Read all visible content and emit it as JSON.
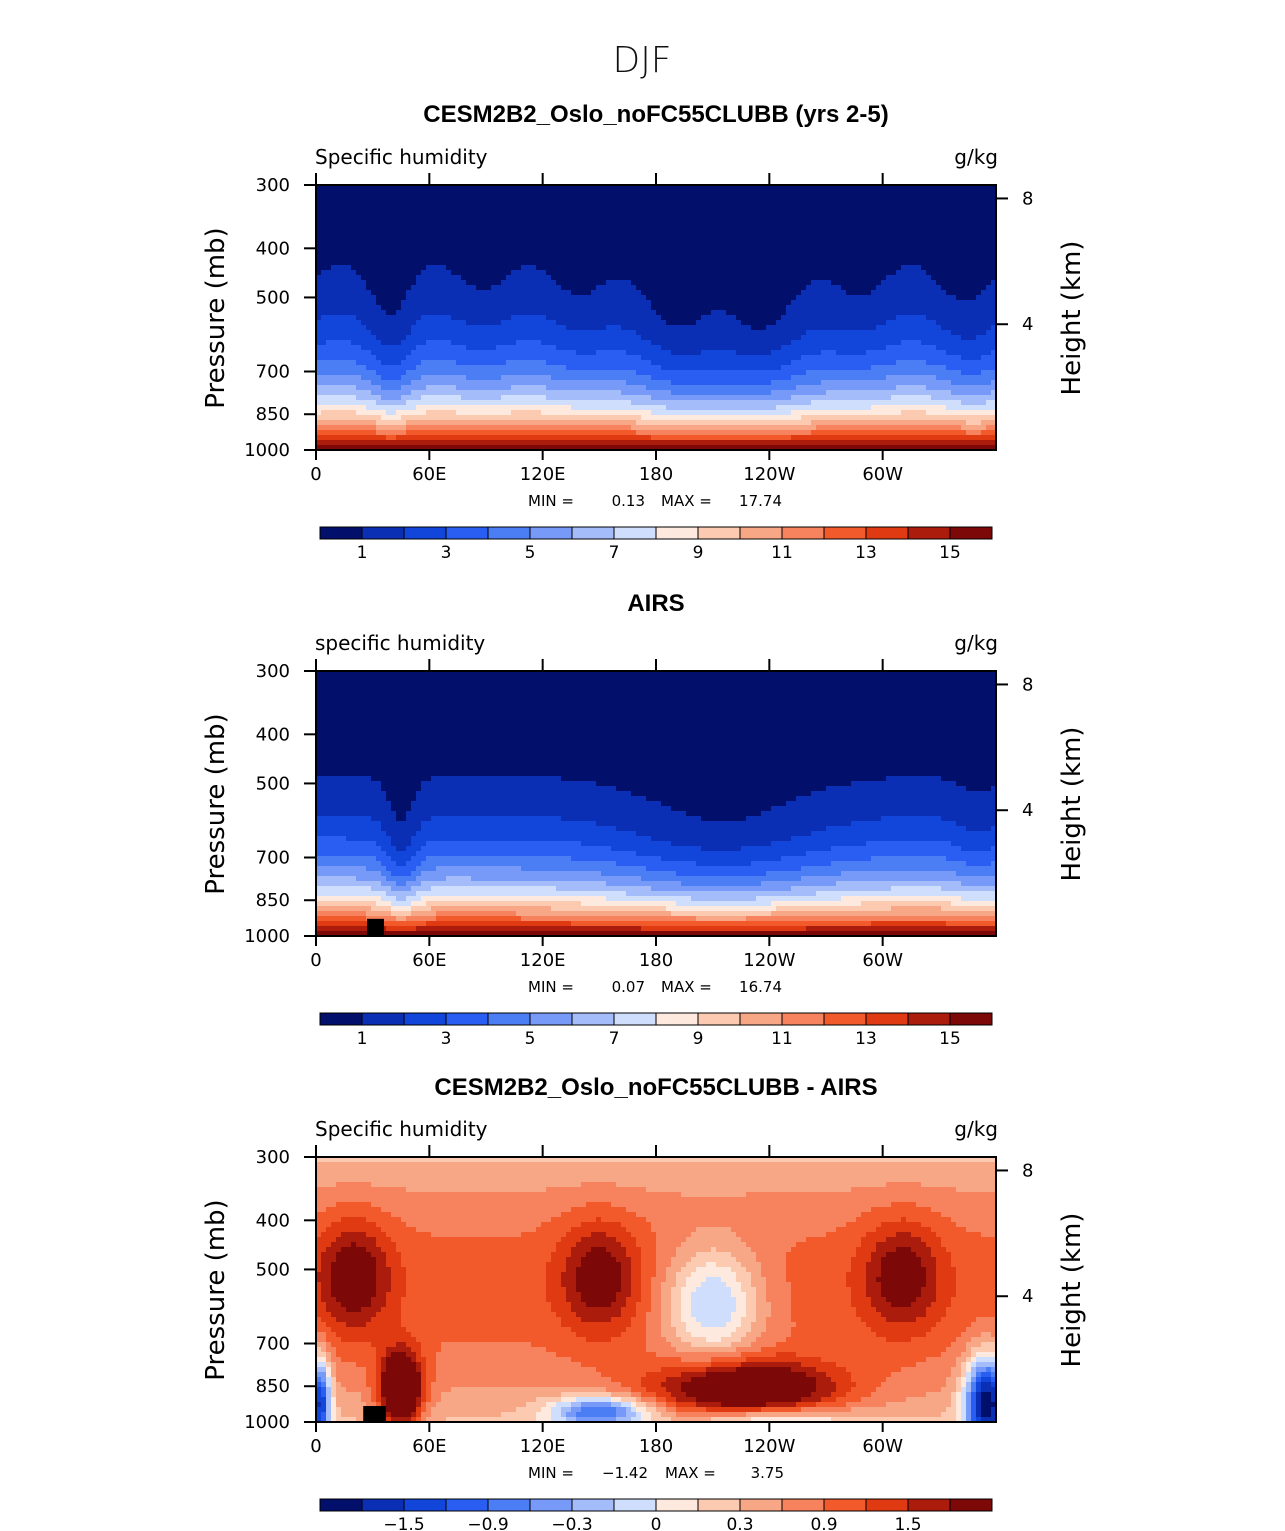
{
  "figure_title": "DJF",
  "colors": {
    "absolute_scale": [
      "#03106b",
      "#0a2fb4",
      "#1245d9",
      "#2a5ef2",
      "#4b7df5",
      "#7799f7",
      "#a4bcfa",
      "#cfdefc",
      "#fde9de",
      "#fbcab0",
      "#f8a786",
      "#f6825e",
      "#f2592b",
      "#e03a12",
      "#ac1c0c",
      "#7c0808"
    ],
    "diff_scale": [
      "#03106b",
      "#0a2fb4",
      "#1245d9",
      "#2a5ef2",
      "#4b7df5",
      "#7799f7",
      "#a4bcfa",
      "#cfdefc",
      "#fde9de",
      "#fbcab0",
      "#f8a786",
      "#f6825e",
      "#f2592b",
      "#e03a12",
      "#ac1c0c",
      "#7c0808"
    ]
  },
  "chart_data": [
    {
      "type": "heatmap",
      "title": "CESM2B2_Oslo_noFC55CLUBB (yrs 2-5)",
      "variable_label": "Specific humidity",
      "units": "g/kg",
      "ylabel": "Pressure (mb)",
      "ylabel_right": "Height (km)",
      "x_ticks": [
        "0",
        "60E",
        "120E",
        "180",
        "120W",
        "60W"
      ],
      "x_tick_values": [
        0,
        60,
        120,
        180,
        240,
        300
      ],
      "x_range": [
        0,
        360
      ],
      "y_ticks": [
        "300",
        "400",
        "500",
        "700",
        "850",
        "1000"
      ],
      "y_tick_values": [
        300,
        400,
        500,
        700,
        850,
        1000
      ],
      "y_range": [
        300,
        1000
      ],
      "right_ticks": [
        "8",
        "4"
      ],
      "right_tick_values": [
        8,
        4
      ],
      "min_label": "MIN =",
      "min_value": "0.13",
      "max_label": "MAX =",
      "max_value": "17.74",
      "colorbar_labels": [
        "1",
        "3",
        "5",
        "7",
        "9",
        "11",
        "13",
        "15"
      ],
      "colorbar_levels": [
        0,
        1,
        2,
        3,
        4,
        5,
        6,
        7,
        8,
        9,
        10,
        11,
        12,
        13,
        14,
        15
      ],
      "masked_box": null
    },
    {
      "type": "heatmap",
      "title": "AIRS",
      "variable_label": "specific humidity",
      "units": "g/kg",
      "ylabel": "Pressure (mb)",
      "ylabel_right": "Height (km)",
      "x_ticks": [
        "0",
        "60E",
        "120E",
        "180",
        "120W",
        "60W"
      ],
      "x_tick_values": [
        0,
        60,
        120,
        180,
        240,
        300
      ],
      "x_range": [
        0,
        360
      ],
      "y_ticks": [
        "300",
        "400",
        "500",
        "700",
        "850",
        "1000"
      ],
      "y_tick_values": [
        300,
        400,
        500,
        700,
        850,
        1000
      ],
      "y_range": [
        300,
        1000
      ],
      "right_ticks": [
        "8",
        "4"
      ],
      "right_tick_values": [
        8,
        4
      ],
      "min_label": "MIN =",
      "min_value": "0.07",
      "max_label": "MAX =",
      "max_value": "16.74",
      "colorbar_labels": [
        "1",
        "3",
        "5",
        "7",
        "9",
        "11",
        "13",
        "15"
      ],
      "colorbar_levels": [
        0,
        1,
        2,
        3,
        4,
        5,
        6,
        7,
        8,
        9,
        10,
        11,
        12,
        13,
        14,
        15
      ],
      "masked_box": {
        "lon": [
          27,
          36
        ],
        "p": [
          925,
          1000
        ]
      }
    },
    {
      "type": "heatmap",
      "title": "CESM2B2_Oslo_noFC55CLUBB - AIRS",
      "variable_label": "Specific humidity",
      "units": "g/kg",
      "ylabel": "Pressure (mb)",
      "ylabel_right": "Height (km)",
      "x_ticks": [
        "0",
        "60E",
        "120E",
        "180",
        "120W",
        "60W"
      ],
      "x_tick_values": [
        0,
        60,
        120,
        180,
        240,
        300
      ],
      "x_range": [
        0,
        360
      ],
      "y_ticks": [
        "300",
        "400",
        "500",
        "700",
        "850",
        "1000"
      ],
      "y_tick_values": [
        300,
        400,
        500,
        700,
        850,
        1000
      ],
      "y_range": [
        300,
        1000
      ],
      "right_ticks": [
        "8",
        "4"
      ],
      "right_tick_values": [
        8,
        4
      ],
      "min_label": "MIN =",
      "min_value": "−1.42",
      "max_label": "MAX =",
      "max_value": "3.75",
      "colorbar_labels": [
        "−1.5",
        "−0.9",
        "−0.3",
        "0",
        "0.3",
        "0.9",
        "1.5"
      ],
      "colorbar_levels": [
        -2.1,
        -1.8,
        -1.5,
        -1.2,
        -0.9,
        -0.6,
        -0.3,
        0,
        0.3,
        0.6,
        0.9,
        1.2,
        1.5,
        1.8,
        2.1
      ],
      "masked_box": {
        "lon": [
          25,
          37
        ],
        "p": [
          930,
          1000
        ]
      }
    }
  ]
}
